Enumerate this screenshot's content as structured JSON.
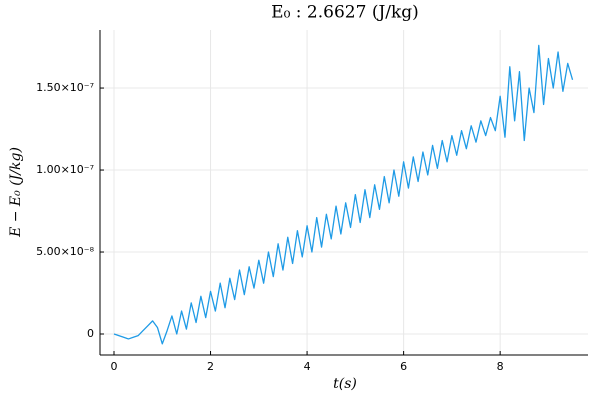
{
  "chart_data": {
    "type": "line",
    "title": "E₀ :   2.6627 (J/kg)",
    "x_label": "t(s)",
    "y_label": "E − E₀  (J/kg)",
    "x": [
      0,
      0.1,
      0.2,
      0.3,
      0.4,
      0.5,
      0.6,
      0.7,
      0.8,
      0.9,
      1.0,
      1.1,
      1.2,
      1.3,
      1.4,
      1.5,
      1.6,
      1.7,
      1.8,
      1.9,
      2.0,
      2.1,
      2.2,
      2.3,
      2.4,
      2.5,
      2.6,
      2.7,
      2.8,
      2.9,
      3.0,
      3.1,
      3.2,
      3.3,
      3.4,
      3.5,
      3.6,
      3.7,
      3.8,
      3.9,
      4.0,
      4.1,
      4.2,
      4.3,
      4.4,
      4.5,
      4.6,
      4.7,
      4.8,
      4.9,
      5.0,
      5.1,
      5.2,
      5.3,
      5.4,
      5.5,
      5.6,
      5.7,
      5.8,
      5.9,
      6.0,
      6.1,
      6.2,
      6.3,
      6.4,
      6.5,
      6.6,
      6.7,
      6.8,
      6.9,
      7.0,
      7.1,
      7.2,
      7.3,
      7.4,
      7.5,
      7.6,
      7.7,
      7.8,
      7.9,
      8.0,
      8.1,
      8.2,
      8.3,
      8.4,
      8.5,
      8.6,
      8.7,
      8.8,
      8.9,
      9.0,
      9.1,
      9.2,
      9.3,
      9.4,
      9.5
    ],
    "series": [
      {
        "color": "#1f9be6",
        "values": [
          0,
          -1e-09,
          -2e-09,
          -3e-09,
          -2e-09,
          -1e-09,
          2e-09,
          5e-09,
          8e-09,
          4e-09,
          -6e-09,
          2e-09,
          1.1e-08,
          0,
          1.4e-08,
          3e-09,
          1.9e-08,
          7e-09,
          2.3e-08,
          1e-08,
          2.6e-08,
          1.4e-08,
          3.1e-08,
          1.6e-08,
          3.4e-08,
          2.1e-08,
          3.9e-08,
          2.4e-08,
          4.1e-08,
          2.8e-08,
          4.5e-08,
          3.1e-08,
          5e-08,
          3.5e-08,
          5.5e-08,
          3.9e-08,
          5.9e-08,
          4.3e-08,
          6.3e-08,
          4.7e-08,
          6.6e-08,
          5e-08,
          7.1e-08,
          5.3e-08,
          7.3e-08,
          5.8e-08,
          7.8e-08,
          6.1e-08,
          8e-08,
          6.5e-08,
          8.5e-08,
          6.8e-08,
          8.8e-08,
          7.1e-08,
          9.1e-08,
          7.6e-08,
          9.6e-08,
          8e-08,
          1e-07,
          8.4e-08,
          1.05e-07,
          8.9e-08,
          1.08e-07,
          9.3e-08,
          1.11e-07,
          9.7e-08,
          1.15e-07,
          1.01e-07,
          1.18e-07,
          1.05e-07,
          1.21e-07,
          1.09e-07,
          1.24e-07,
          1.13e-07,
          1.27e-07,
          1.17e-07,
          1.3e-07,
          1.21e-07,
          1.32e-07,
          1.24e-07,
          1.45e-07,
          1.2e-07,
          1.63e-07,
          1.3e-07,
          1.6e-07,
          1.18e-07,
          1.5e-07,
          1.35e-07,
          1.76e-07,
          1.4e-07,
          1.68e-07,
          1.5e-07,
          1.72e-07,
          1.48e-07,
          1.65e-07,
          1.55e-07
        ]
      }
    ],
    "xlim": [
      -0.29,
      9.82
    ],
    "ylim": [
      -1.28e-08,
      1.854e-07
    ],
    "xticks": [
      0,
      2,
      4,
      6,
      8
    ],
    "yticks": [
      0,
      {
        "value": 5e-08,
        "label": "5.00×10⁻⁸"
      },
      {
        "value": 1e-07,
        "label": "1.00×10⁻⁷"
      },
      {
        "value": 1.5e-07,
        "label": "1.50×10⁻⁷"
      }
    ],
    "grid": true
  }
}
